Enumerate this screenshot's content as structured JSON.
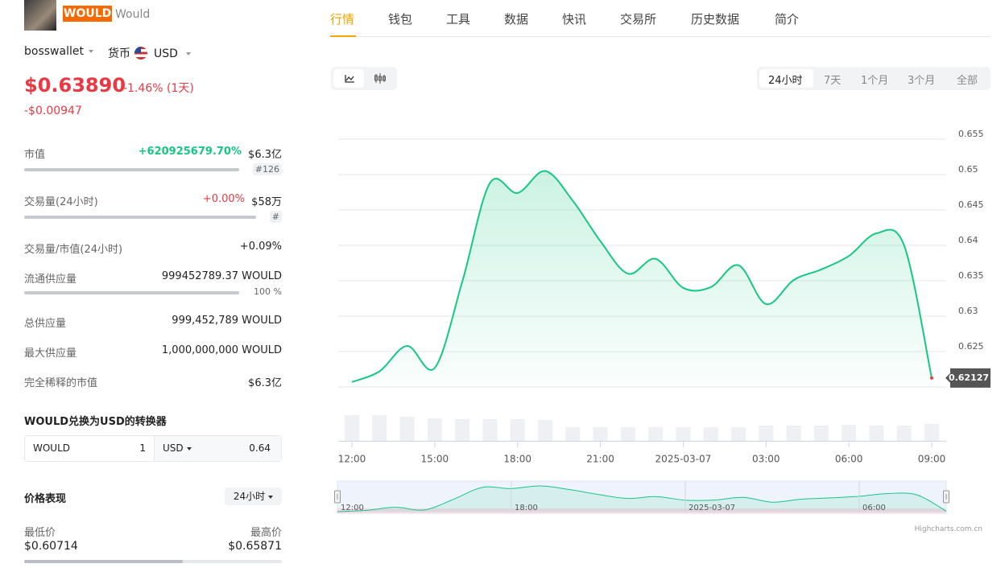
{
  "token": {
    "symbol": "WOULD",
    "name": "Would"
  },
  "wallet": "bosswallet",
  "currency_label": "货币",
  "currency": "USD",
  "price": "$0.63890",
  "change": "-1.46% (1天)",
  "change_abs": "-$0.00947",
  "stats": {
    "market_cap": {
      "label": "市值",
      "change": "+620925679.70%",
      "value": "$6.3亿",
      "rank": "#126"
    },
    "volume": {
      "label": "交易量(24小时)",
      "change": "+0.00%",
      "value": "$58万",
      "rank": "#"
    },
    "vol_mcap": {
      "label": "交易量/市值(24小时)",
      "value": "+0.09%"
    },
    "circulating": {
      "label": "流通供应量",
      "value": "999452789.37 WOULD",
      "percent": "100 %"
    },
    "total": {
      "label": "总供应量",
      "value": "999,452,789 WOULD"
    },
    "max": {
      "label": "最大供应量",
      "value": "1,000,000,000 WOULD"
    },
    "fdv": {
      "label": "完全稀释的市值",
      "value": "$6.3亿"
    }
  },
  "converter": {
    "title": "WOULD兑换为USD的转换器",
    "from": "WOULD",
    "amount": "1",
    "to": "USD",
    "result": "0.64"
  },
  "performance": {
    "title": "价格表现",
    "period": "24小时",
    "low_label": "最低价",
    "low": "$0.60714",
    "high_label": "最高价",
    "high": "$0.65871"
  },
  "tabs": [
    "行情",
    "钱包",
    "工具",
    "数据",
    "快讯",
    "交易所",
    "历史数据",
    "简介"
  ],
  "ranges": [
    "24小时",
    "7天",
    "1个月",
    "3个月",
    "全部"
  ],
  "credit": "Highcharts.com.cn",
  "chart_data": {
    "type": "line",
    "categories": [
      "12:00",
      null,
      null,
      "15:00",
      null,
      null,
      "18:00",
      null,
      null,
      "21:00",
      null,
      null,
      "2025-03-07",
      null,
      null,
      "03:00",
      null,
      null,
      "06:00",
      null,
      null,
      "09:00"
    ],
    "values": [
      0.6207,
      0.6222,
      0.6258,
      0.6227,
      0.6349,
      0.6488,
      0.6474,
      0.6505,
      0.6463,
      0.6406,
      0.636,
      0.6381,
      0.634,
      0.6341,
      0.6372,
      0.6317,
      0.6351,
      0.6366,
      0.6385,
      0.6417,
      0.64,
      0.62127
    ],
    "volume": [
      32,
      32,
      30,
      28,
      27,
      27,
      27,
      26,
      17,
      17,
      17,
      17,
      17,
      17,
      17,
      19,
      19,
      19,
      20,
      19,
      19,
      21
    ],
    "color": "#16c784",
    "ylim": [
      0.62,
      0.655
    ],
    "yticks": [
      0.625,
      0.63,
      0.635,
      0.64,
      0.645,
      0.65,
      0.655
    ],
    "grid": true
  }
}
